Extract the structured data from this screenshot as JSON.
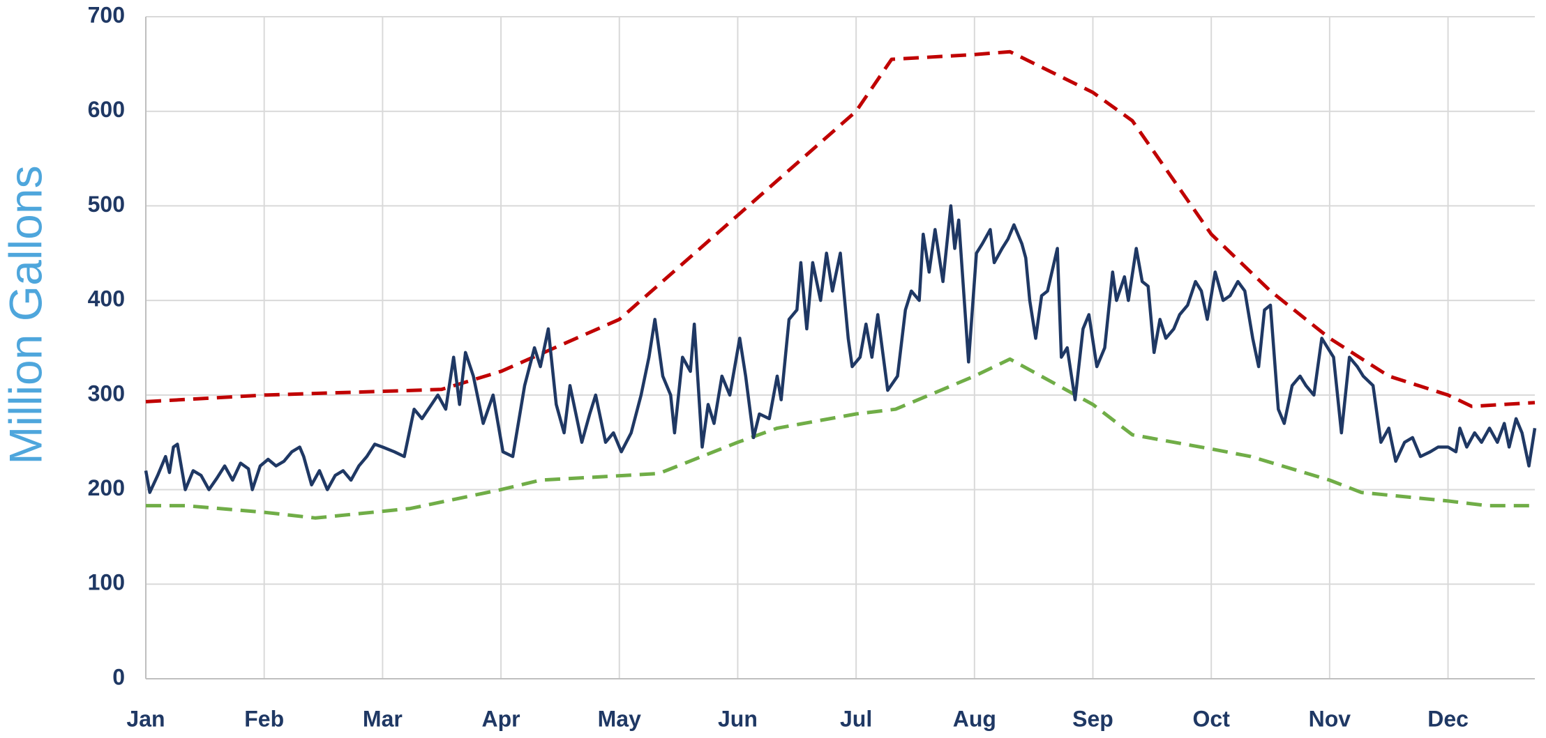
{
  "chart_data": {
    "type": "line",
    "ylabel": "Million Gallons",
    "xlim": [
      0,
      352
    ],
    "xticks": [
      {
        "value": 0,
        "label": "Jan"
      },
      {
        "value": 30,
        "label": "Feb"
      },
      {
        "value": 60,
        "label": "Mar"
      },
      {
        "value": 90,
        "label": "Apr"
      },
      {
        "value": 120,
        "label": "May"
      },
      {
        "value": 150,
        "label": "Jun"
      },
      {
        "value": 180,
        "label": "Jul"
      },
      {
        "value": 210,
        "label": "Aug"
      },
      {
        "value": 240,
        "label": "Sep"
      },
      {
        "value": 270,
        "label": "Oct"
      },
      {
        "value": 300,
        "label": "Nov"
      },
      {
        "value": 330,
        "label": "Dec"
      }
    ],
    "ylim": [
      0,
      700
    ],
    "yticks": [
      0,
      100,
      200,
      300,
      400,
      500,
      600,
      700
    ],
    "grid": true,
    "series": [
      {
        "color": "#c00000",
        "dash": true,
        "x": [
          0,
          30,
          68,
          75,
          90,
          120,
          150,
          180,
          189,
          210,
          219,
          240,
          250,
          270,
          285,
          300,
          315,
          330,
          336,
          352
        ],
        "values": [
          293,
          300,
          305,
          306,
          325,
          380,
          490,
          600,
          655,
          660,
          663,
          620,
          590,
          470,
          410,
          360,
          320,
          300,
          288,
          292
        ]
      },
      {
        "color": "#70ad47",
        "dash": true,
        "x": [
          0,
          10,
          30,
          43,
          67,
          90,
          100,
          130,
          150,
          160,
          180,
          190,
          210,
          219,
          240,
          250,
          270,
          280,
          300,
          308,
          330,
          340,
          352
        ],
        "values": [
          183,
          183,
          176,
          170,
          180,
          200,
          210,
          217,
          250,
          265,
          280,
          285,
          320,
          338,
          290,
          258,
          243,
          235,
          210,
          197,
          188,
          183,
          183
        ]
      },
      {
        "color": "#1f3864",
        "dash": false,
        "x": [
          0,
          1,
          3,
          5,
          6,
          7,
          8,
          10,
          12,
          14,
          16,
          18,
          20,
          22,
          24,
          26,
          27,
          29,
          31,
          33,
          35,
          37,
          39,
          40,
          42,
          44,
          46,
          48,
          50,
          52,
          54,
          56,
          58,
          60,
          63,
          65.5,
          68,
          70,
          74,
          76,
          78,
          79.5,
          81,
          83,
          85.5,
          88,
          90.5,
          93,
          96,
          98.5,
          100,
          102,
          104,
          106,
          107.5,
          110.5,
          112.5,
          114,
          116.5,
          118.5,
          120.5,
          123,
          125.5,
          127.5,
          129,
          131,
          133,
          134,
          136,
          138,
          139,
          141,
          142.5,
          144,
          146,
          148,
          150.5,
          152,
          154,
          155.5,
          158,
          160,
          161,
          163,
          165,
          166,
          167.5,
          169,
          171,
          172.5,
          174,
          176,
          178,
          179,
          181,
          182.5,
          184,
          185.5,
          188,
          190.5,
          192.5,
          194,
          196,
          197,
          198.5,
          200,
          202,
          204,
          205,
          206,
          208.5,
          210.5,
          212,
          214,
          215,
          217,
          218.5,
          220,
          222,
          223,
          224,
          225.5,
          227,
          228.5,
          231,
          232,
          233.5,
          235.5,
          237.5,
          239,
          241,
          243,
          245,
          246,
          248,
          249,
          251,
          252.5,
          254,
          255.5,
          257,
          258.5,
          260.5,
          262,
          264,
          266,
          267.5,
          269,
          271,
          273,
          274.75,
          276.75,
          278.5,
          280.5,
          282,
          283.5,
          285,
          287,
          288.5,
          290.5,
          292.5,
          294,
          296,
          298,
          299.5,
          301,
          303,
          305,
          307,
          308.5,
          311,
          313,
          315,
          316.75,
          319,
          321,
          323,
          325.5,
          327.5,
          330,
          332,
          333,
          334.75,
          336.75,
          338.5,
          340.5,
          342.5,
          344.25,
          345.5,
          347.25,
          348.75,
          350.5,
          352
        ],
        "values": [
          220,
          197,
          215,
          235,
          218,
          245,
          248,
          200,
          220,
          215,
          200,
          212,
          225,
          210,
          228,
          222,
          200,
          225,
          232,
          225,
          230,
          240,
          245,
          235,
          205,
          220,
          200,
          215,
          220,
          210,
          225,
          235,
          248,
          245,
          240,
          235,
          285,
          275,
          300,
          285,
          340,
          290,
          345,
          320,
          270,
          300,
          240,
          235,
          310,
          350,
          330,
          370,
          290,
          260,
          310,
          250,
          280,
          300,
          250,
          260,
          240,
          260,
          300,
          340,
          380,
          320,
          300,
          260,
          340,
          325,
          375,
          245,
          290,
          270,
          320,
          300,
          360,
          320,
          255,
          280,
          275,
          320,
          295,
          380,
          390,
          440,
          370,
          440,
          400,
          450,
          410,
          450,
          360,
          330,
          340,
          375,
          340,
          385,
          305,
          320,
          390,
          410,
          400,
          470,
          430,
          475,
          420,
          500,
          455,
          485,
          335,
          450,
          460,
          475,
          440,
          455,
          465,
          480,
          460,
          445,
          400,
          360,
          405,
          410,
          455,
          340,
          350,
          295,
          370,
          385,
          330,
          350,
          430,
          400,
          425,
          400,
          455,
          420,
          415,
          345,
          380,
          360,
          370,
          385,
          395,
          420,
          410,
          380,
          430,
          400,
          405,
          420,
          410,
          360,
          330,
          390,
          395,
          285,
          270,
          310,
          320,
          310,
          300,
          360,
          350,
          340,
          260,
          340,
          330,
          320,
          310,
          250,
          265,
          230,
          250,
          255,
          235,
          240,
          245,
          245,
          240,
          265,
          245,
          260,
          250,
          265,
          250,
          270,
          245,
          275,
          260,
          225,
          265
        ]
      }
    ]
  }
}
